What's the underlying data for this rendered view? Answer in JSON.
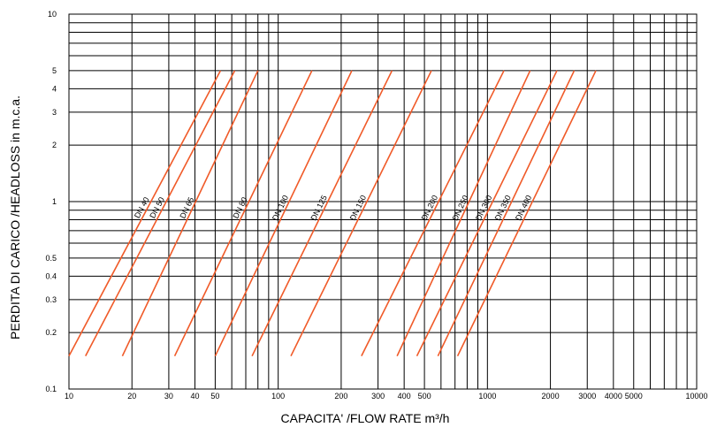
{
  "chart_data": {
    "type": "line",
    "scale": "log-log",
    "grid": true,
    "xlabel": "CAPACITA' /FLOW RATE m³/h",
    "ylabel": "PERDITA DI CARICO /HEADLOSS in m.c.a.",
    "xlim": [
      10,
      10000
    ],
    "ylim": [
      0.1,
      10
    ],
    "x_ticks": [
      10,
      20,
      30,
      40,
      50,
      100,
      200,
      300,
      400,
      500,
      1000,
      2000,
      3000,
      4000,
      5000,
      10000
    ],
    "x_tick_labels": [
      "10",
      "20",
      "30",
      "40",
      "50",
      "100",
      "200",
      "300",
      "400",
      "500",
      "1000",
      "2000",
      "3000",
      "4000",
      "5000",
      "10000"
    ],
    "y_ticks": [
      0.1,
      0.2,
      0.3,
      0.4,
      0.5,
      1,
      2,
      3,
      4,
      5,
      10
    ],
    "y_tick_labels": [
      "0.1",
      "0.2",
      "0.3",
      "0.4",
      "0.5",
      "1",
      "2",
      "3",
      "4",
      "5",
      "10"
    ],
    "line_color": "#f05a28",
    "series": [
      {
        "name": "DN 40",
        "x": [
          10,
          53
        ],
        "y": [
          0.15,
          5
        ]
      },
      {
        "name": "DN 50",
        "x": [
          12,
          62
        ],
        "y": [
          0.15,
          5
        ]
      },
      {
        "name": "DN 65",
        "x": [
          18,
          80
        ],
        "y": [
          0.15,
          5
        ]
      },
      {
        "name": "DN 80",
        "x": [
          32,
          145
        ],
        "y": [
          0.15,
          5
        ]
      },
      {
        "name": "DN 100",
        "x": [
          50,
          225
        ],
        "y": [
          0.15,
          5
        ]
      },
      {
        "name": "DN 125",
        "x": [
          75,
          350
        ],
        "y": [
          0.15,
          5
        ]
      },
      {
        "name": "DN 150",
        "x": [
          115,
          540
        ],
        "y": [
          0.15,
          5
        ]
      },
      {
        "name": "DN 200",
        "x": [
          250,
          1200
        ],
        "y": [
          0.15,
          5
        ]
      },
      {
        "name": "DN 250",
        "x": [
          370,
          1600
        ],
        "y": [
          0.15,
          5
        ]
      },
      {
        "name": "DN 300",
        "x": [
          460,
          2150
        ],
        "y": [
          0.15,
          5
        ]
      },
      {
        "name": "DN 350",
        "x": [
          580,
          2600
        ],
        "y": [
          0.15,
          5
        ]
      },
      {
        "name": "DN 400",
        "x": [
          720,
          3300
        ],
        "y": [
          0.15,
          5
        ]
      }
    ]
  }
}
